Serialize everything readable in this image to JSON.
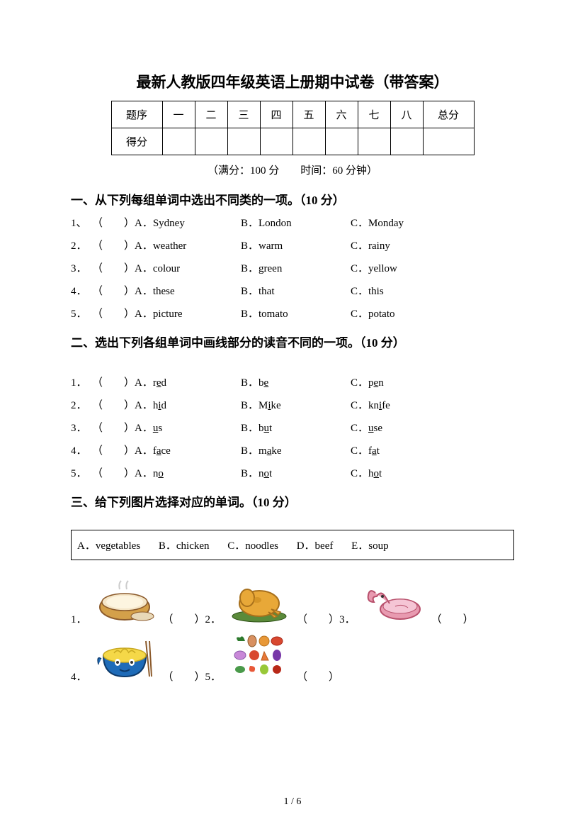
{
  "title": "最新人教版四年级英语上册期中试卷（带答案）",
  "score_table": {
    "header_label": "题序",
    "cols": [
      "一",
      "二",
      "三",
      "四",
      "五",
      "六",
      "七",
      "八"
    ],
    "total_label": "总分",
    "score_row_label": "得分"
  },
  "meta": "（满分：100 分　　时间：60 分钟）",
  "sections": {
    "s1": {
      "title": "一、从下列每组单词中选出不同类的一项。（10 分）",
      "rows": [
        {
          "n": "1、",
          "a": "A．Sydney",
          "b": "B．London",
          "c": "C．Monday"
        },
        {
          "n": "2．",
          "a": "A．weather",
          "b": "B．warm",
          "c": "C．rainy"
        },
        {
          "n": "3．",
          "a": "A．colour",
          "b": "B．green",
          "c": "C．yellow"
        },
        {
          "n": "4．",
          "a": "A．these",
          "b": "B．that",
          "c": "C．this"
        },
        {
          "n": "5．",
          "a": "A．picture",
          "b": "B．tomato",
          "c": "C．potato"
        }
      ]
    },
    "s2": {
      "title": "二、选出下列各组单词中画线部分的读音不同的一项。（10 分）",
      "rows": [
        {
          "n": "1．",
          "a_pre": "A．r",
          "a_u": "e",
          "a_post": "d",
          "b_pre": "B．b",
          "b_u": "e",
          "b_post": "",
          "c_pre": "C．p",
          "c_u": "e",
          "c_post": "n"
        },
        {
          "n": "2．",
          "a_pre": "A．h",
          "a_u": "i",
          "a_post": "d",
          "b_pre": "B．M",
          "b_u": "i",
          "b_post": "ke",
          "c_pre": "C．kn",
          "c_u": "i",
          "c_post": "fe"
        },
        {
          "n": "3．",
          "a_pre": "A．",
          "a_u": "u",
          "a_post": "s",
          "b_pre": "B．b",
          "b_u": "u",
          "b_post": "t",
          "c_pre": "C．",
          "c_u": "u",
          "c_post": "se"
        },
        {
          "n": "4．",
          "a_pre": "A．f",
          "a_u": "a",
          "a_post": "ce",
          "b_pre": "B．m",
          "b_u": "a",
          "b_post": "ke",
          "c_pre": "C．f",
          "c_u": "a",
          "c_post": "t"
        },
        {
          "n": "5．",
          "a_pre": "A．n",
          "a_u": "o",
          "a_post": "",
          "b_pre": "B．n",
          "b_u": "o",
          "b_post": "t",
          "c_pre": "C．h",
          "c_u": "o",
          "c_post": "t"
        }
      ]
    },
    "s3": {
      "title": "三、给下列图片选择对应的单词。（10 分）",
      "options": {
        "a": "A．vegetables",
        "b": "B．chicken",
        "c": "C．noodles",
        "d": "D．beef",
        "e": "E．soup"
      },
      "items": [
        {
          "n": "1．",
          "paren": "（　　）"
        },
        {
          "n": "2．",
          "paren": "（　　）"
        },
        {
          "n": "3．",
          "paren": "（　　）"
        },
        {
          "n": "4．",
          "paren": "（　　）"
        },
        {
          "n": "5．",
          "paren": "（　　）"
        }
      ]
    }
  },
  "paren_text": "（　　）",
  "page_num": "1 / 6",
  "colors": {
    "text": "#000000",
    "bg": "#ffffff",
    "bowl_soup": "#d4a04a",
    "chicken": "#e8a838",
    "beef": "#e89ab0",
    "noodle_bowl": "#1e6bb8",
    "noodle": "#f5d848"
  }
}
